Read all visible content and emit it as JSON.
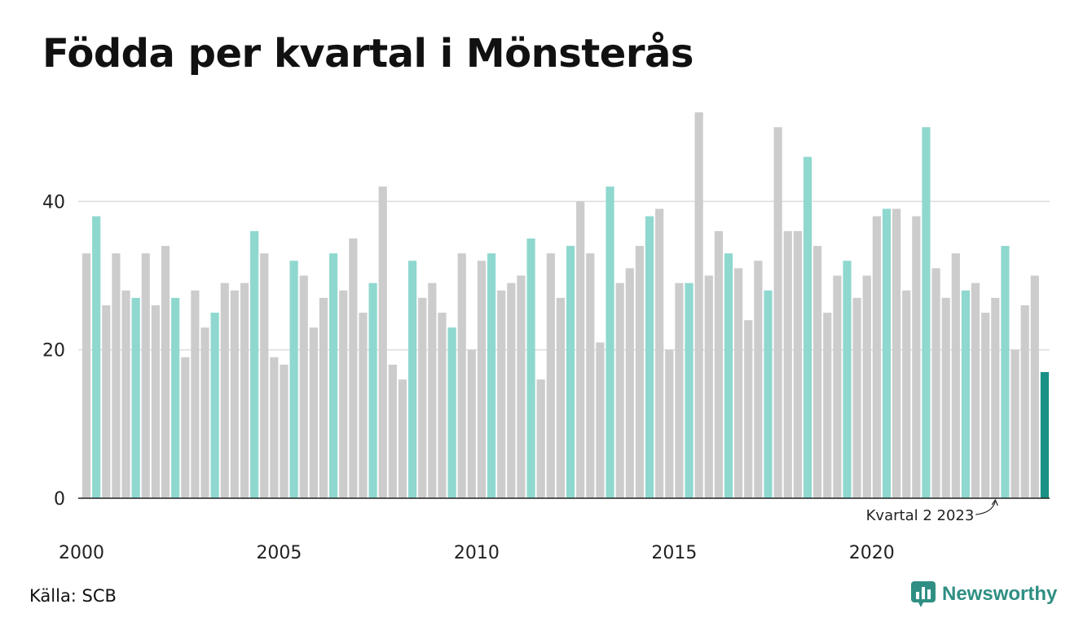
{
  "header": {
    "title": "Födda per kvartal i Mönsterås"
  },
  "footer": {
    "source": "Källa: SCB",
    "brand": "Newsworthy"
  },
  "colors": {
    "bar_default": "#cccccc",
    "bar_q2": "#8ed8cf",
    "bar_latest": "#1a9186",
    "grid": "#dddddd",
    "axis": "#222222",
    "brand": "#2f8f83"
  },
  "chart_data": {
    "type": "bar",
    "title": "Födda per kvartal i Mönsterås",
    "xlabel": "",
    "ylabel": "",
    "ylim": [
      0,
      52
    ],
    "yticks": [
      0,
      20,
      40
    ],
    "xtick_labels": [
      "2000",
      "2005",
      "2010",
      "2015",
      "2020"
    ],
    "grid": true,
    "start_year": 2000,
    "highlight_quarter": 2,
    "annotation": "Kvartal 2 2023",
    "values": [
      33,
      38,
      26,
      33,
      28,
      27,
      33,
      26,
      34,
      27,
      19,
      28,
      23,
      25,
      29,
      28,
      29,
      36,
      33,
      19,
      18,
      32,
      30,
      23,
      27,
      33,
      28,
      35,
      25,
      29,
      42,
      18,
      16,
      32,
      27,
      29,
      25,
      23,
      33,
      20,
      32,
      33,
      28,
      29,
      30,
      35,
      16,
      33,
      27,
      34,
      40,
      33,
      21,
      42,
      29,
      31,
      34,
      38,
      39,
      20,
      29,
      29,
      52,
      30,
      36,
      33,
      31,
      24,
      32,
      28,
      50,
      36,
      36,
      46,
      34,
      25,
      30,
      32,
      27,
      30,
      38,
      39,
      39,
      28,
      38,
      50,
      31,
      27,
      33,
      28,
      29,
      25,
      27,
      34,
      20,
      26,
      30,
      17
    ]
  }
}
